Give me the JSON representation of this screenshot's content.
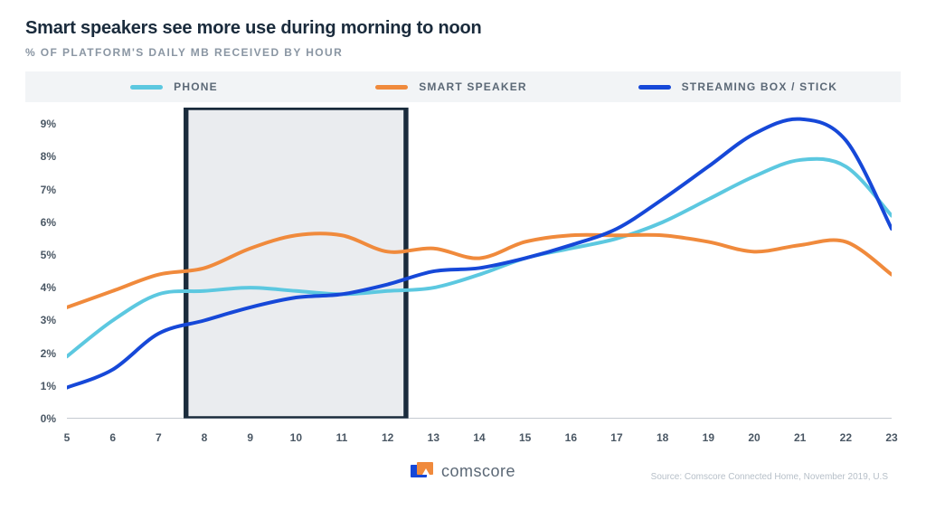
{
  "title": "Smart speakers see more use during morning to noon",
  "subtitle": "% OF PLATFORM'S DAILY MB RECEIVED BY HOUR",
  "chart": {
    "type": "line",
    "background_color": "#ffffff",
    "legend_bg": "#f2f4f6",
    "axis_text_color": "#4a5764",
    "title_color": "#1a2b3c",
    "subtitle_color": "#8a96a3",
    "title_fontsize": 20,
    "subtitle_fontsize": 12,
    "legend_fontsize": 12,
    "axis_fontsize": 12,
    "x": [
      5,
      6,
      7,
      8,
      9,
      10,
      11,
      12,
      13,
      14,
      15,
      16,
      17,
      18,
      19,
      20,
      21,
      22,
      23
    ],
    "xlim": [
      5,
      23
    ],
    "ylim": [
      0,
      9.5
    ],
    "ytick_labels": [
      "0%",
      "1%",
      "2%",
      "3%",
      "4%",
      "5%",
      "6%",
      "7%",
      "8%",
      "9%"
    ],
    "ytick_values": [
      0,
      1,
      2,
      3,
      4,
      5,
      6,
      7,
      8,
      9
    ],
    "xtick_labels": [
      "5",
      "6",
      "7",
      "8",
      "9",
      "10",
      "11",
      "12",
      "13",
      "14",
      "15",
      "16",
      "17",
      "18",
      "19",
      "20",
      "21",
      "22",
      "23"
    ],
    "series": [
      {
        "name": "PHONE",
        "color": "#5cc8e0",
        "line_width": 4,
        "values": [
          1.9,
          3.0,
          3.8,
          3.9,
          4.0,
          3.9,
          3.8,
          3.9,
          4.0,
          4.4,
          4.9,
          5.2,
          5.5,
          6.0,
          6.7,
          7.4,
          7.9,
          7.7,
          6.2
        ]
      },
      {
        "name": "SMART SPEAKER",
        "color": "#f08a3c",
        "line_width": 4,
        "values": [
          3.4,
          3.9,
          4.4,
          4.6,
          5.2,
          5.6,
          5.6,
          5.1,
          5.2,
          4.9,
          5.4,
          5.6,
          5.6,
          5.6,
          5.4,
          5.1,
          5.3,
          5.4,
          4.4
        ]
      },
      {
        "name": "STREAMING BOX / STICK",
        "color": "#1648d8",
        "line_width": 4,
        "values": [
          0.95,
          1.5,
          2.6,
          3.0,
          3.4,
          3.7,
          3.8,
          4.1,
          4.5,
          4.6,
          4.9,
          5.3,
          5.8,
          6.7,
          7.7,
          8.7,
          9.15,
          8.5,
          5.8
        ]
      }
    ],
    "highlight_box": {
      "x_start": 7.6,
      "x_end": 12.4,
      "fill": "#d8dde2",
      "fill_opacity": 0.55,
      "stroke": "#1a2b3c",
      "stroke_width": 1.8
    },
    "baseline_color": "#8a96a3",
    "legend_positions_pct": [
      12,
      40,
      70
    ]
  },
  "footer": {
    "brand_name": "comscore",
    "brand_logo_colors": {
      "back": "#1648d8",
      "front": "#f08a3c"
    },
    "source_text": "Source: Comscore Connected Home, November 2019, U.S"
  }
}
